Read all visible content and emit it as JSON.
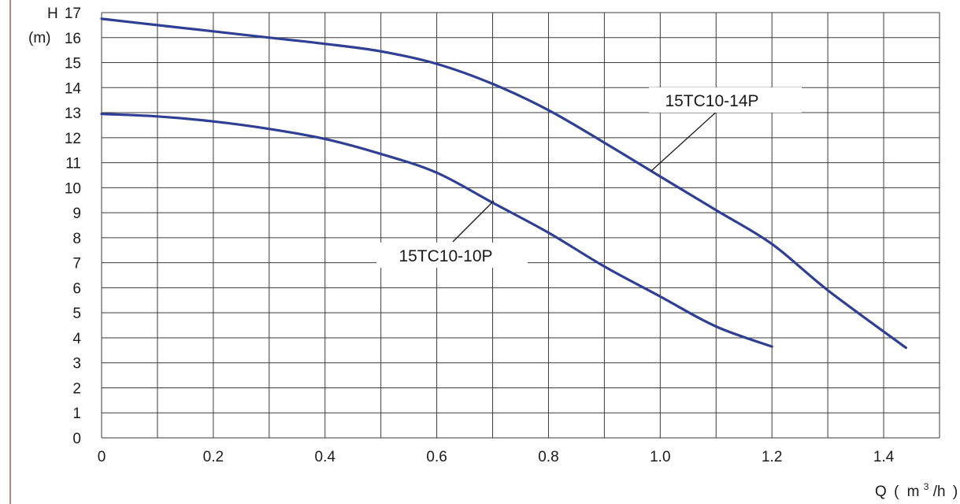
{
  "chart_data": {
    "type": "line",
    "xlabel": "Q",
    "xlabel_unit": {
      "open": "(",
      "base": "m",
      "sup": "3",
      "rest": "/h",
      "close": ")"
    },
    "ylabel": "H",
    "ylabel_unit": "(m)",
    "xlim": [
      0,
      1.5
    ],
    "ylim": [
      0,
      17
    ],
    "x_ticks": [
      "0",
      "0.2",
      "0.4",
      "0.6",
      "0.8",
      "1.0",
      "1.2",
      "1.4"
    ],
    "x_tick_values": [
      0,
      0.2,
      0.4,
      0.6,
      0.8,
      1.0,
      1.2,
      1.4
    ],
    "y_ticks": [
      "0",
      "1",
      "2",
      "3",
      "4",
      "5",
      "6",
      "7",
      "8",
      "9",
      "10",
      "11",
      "12",
      "13",
      "14",
      "15",
      "16",
      "17"
    ],
    "grid": true,
    "series": [
      {
        "name": "15TC10-14P",
        "color": "#2e3f94",
        "x": [
          0,
          0.1,
          0.2,
          0.3,
          0.4,
          0.5,
          0.6,
          0.7,
          0.8,
          0.9,
          1.0,
          1.1,
          1.2,
          1.3,
          1.44
        ],
        "y": [
          16.75,
          16.5,
          16.25,
          16.0,
          15.75,
          15.45,
          14.95,
          14.15,
          13.1,
          11.8,
          10.45,
          9.1,
          7.75,
          5.9,
          3.6
        ]
      },
      {
        "name": "15TC10-10P",
        "color": "#2e3f94",
        "x": [
          0,
          0.1,
          0.2,
          0.3,
          0.4,
          0.5,
          0.6,
          0.7,
          0.8,
          0.9,
          1.0,
          1.1,
          1.2
        ],
        "y": [
          12.95,
          12.85,
          12.65,
          12.35,
          11.95,
          11.35,
          10.6,
          9.4,
          8.2,
          6.85,
          5.65,
          4.45,
          3.65
        ]
      }
    ]
  }
}
